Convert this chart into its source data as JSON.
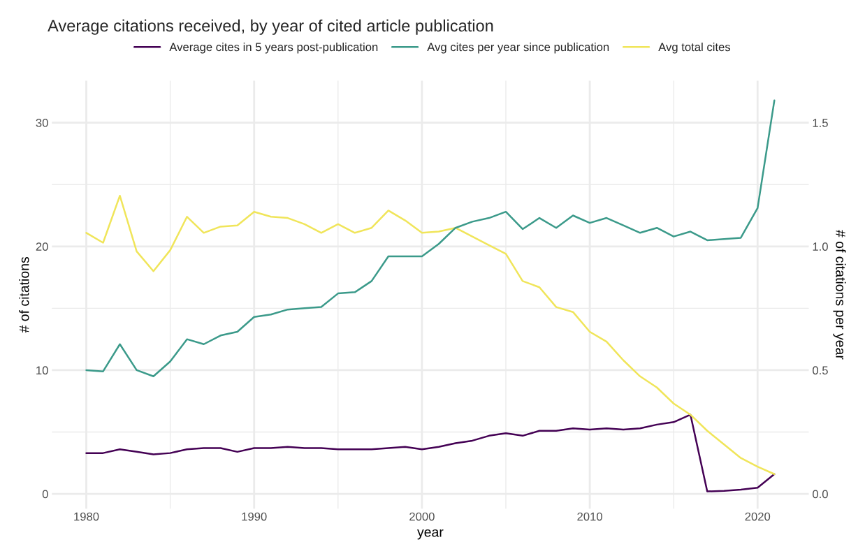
{
  "chart_data": {
    "type": "line",
    "title": "Average citations received, by year of cited article publication",
    "xlabel": "year",
    "ylabel": "# of citations",
    "y2label": "# of citations per year",
    "x": [
      1980,
      1981,
      1982,
      1983,
      1984,
      1985,
      1986,
      1987,
      1988,
      1989,
      1990,
      1991,
      1992,
      1993,
      1994,
      1995,
      1996,
      1997,
      1998,
      1999,
      2000,
      2001,
      2002,
      2003,
      2004,
      2005,
      2006,
      2007,
      2008,
      2009,
      2010,
      2011,
      2012,
      2013,
      2014,
      2015,
      2016,
      2017,
      2018,
      2019,
      2020,
      2021
    ],
    "series": [
      {
        "name": "Average cites in 5 years post-publication",
        "color": "#440154",
        "values": [
          3.3,
          3.3,
          3.6,
          3.4,
          3.2,
          3.3,
          3.6,
          3.7,
          3.7,
          3.4,
          3.7,
          3.7,
          3.8,
          3.7,
          3.7,
          3.6,
          3.6,
          3.6,
          3.7,
          3.8,
          3.6,
          3.8,
          4.1,
          4.3,
          4.7,
          4.9,
          4.7,
          5.1,
          5.1,
          5.3,
          5.2,
          5.3,
          5.2,
          5.3,
          5.6,
          5.8,
          6.4,
          0.2,
          0.25,
          0.35,
          0.5,
          1.6
        ]
      },
      {
        "name": "Avg cites per year since publication",
        "color": "#3b9a8a",
        "axis": "y2",
        "values": [
          0.5,
          0.495,
          0.605,
          0.5,
          0.475,
          0.535,
          0.625,
          0.605,
          0.64,
          0.655,
          0.715,
          0.725,
          0.745,
          0.75,
          0.755,
          0.81,
          0.815,
          0.86,
          0.96,
          0.96,
          0.96,
          1.01,
          1.075,
          1.1,
          1.115,
          1.14,
          1.07,
          1.115,
          1.075,
          1.125,
          1.095,
          1.115,
          1.085,
          1.055,
          1.075,
          1.04,
          1.06,
          1.025,
          1.03,
          1.035,
          1.155,
          1.59
        ]
      },
      {
        "name": "Avg total cites",
        "color": "#f0e55a",
        "values": [
          21.1,
          20.3,
          24.1,
          19.6,
          18.0,
          19.7,
          22.4,
          21.1,
          21.6,
          21.7,
          22.8,
          22.4,
          22.3,
          21.8,
          21.1,
          21.8,
          21.1,
          21.5,
          22.9,
          22.1,
          21.1,
          21.2,
          21.5,
          20.8,
          20.1,
          19.4,
          17.2,
          16.7,
          15.1,
          14.7,
          13.1,
          12.3,
          10.8,
          9.5,
          8.6,
          7.3,
          6.4,
          5.1,
          4.0,
          2.9,
          2.2,
          1.6
        ]
      }
    ],
    "xlim": [
      1977.95,
      2023.05
    ],
    "xticks": [
      1980,
      1990,
      2000,
      2010,
      2020
    ],
    "ylim": [
      -1.2,
      33.4
    ],
    "yticks": [
      0,
      10,
      20,
      30
    ],
    "y2lim": [
      -0.06,
      1.67
    ],
    "y2ticks": [
      {
        "value": 0,
        "label": "0.0"
      },
      0.5,
      {
        "value": 1,
        "label": "1.0"
      },
      1.5
    ],
    "grid": true,
    "legend": "top",
    "line_style": "solid",
    "marker": "none"
  }
}
